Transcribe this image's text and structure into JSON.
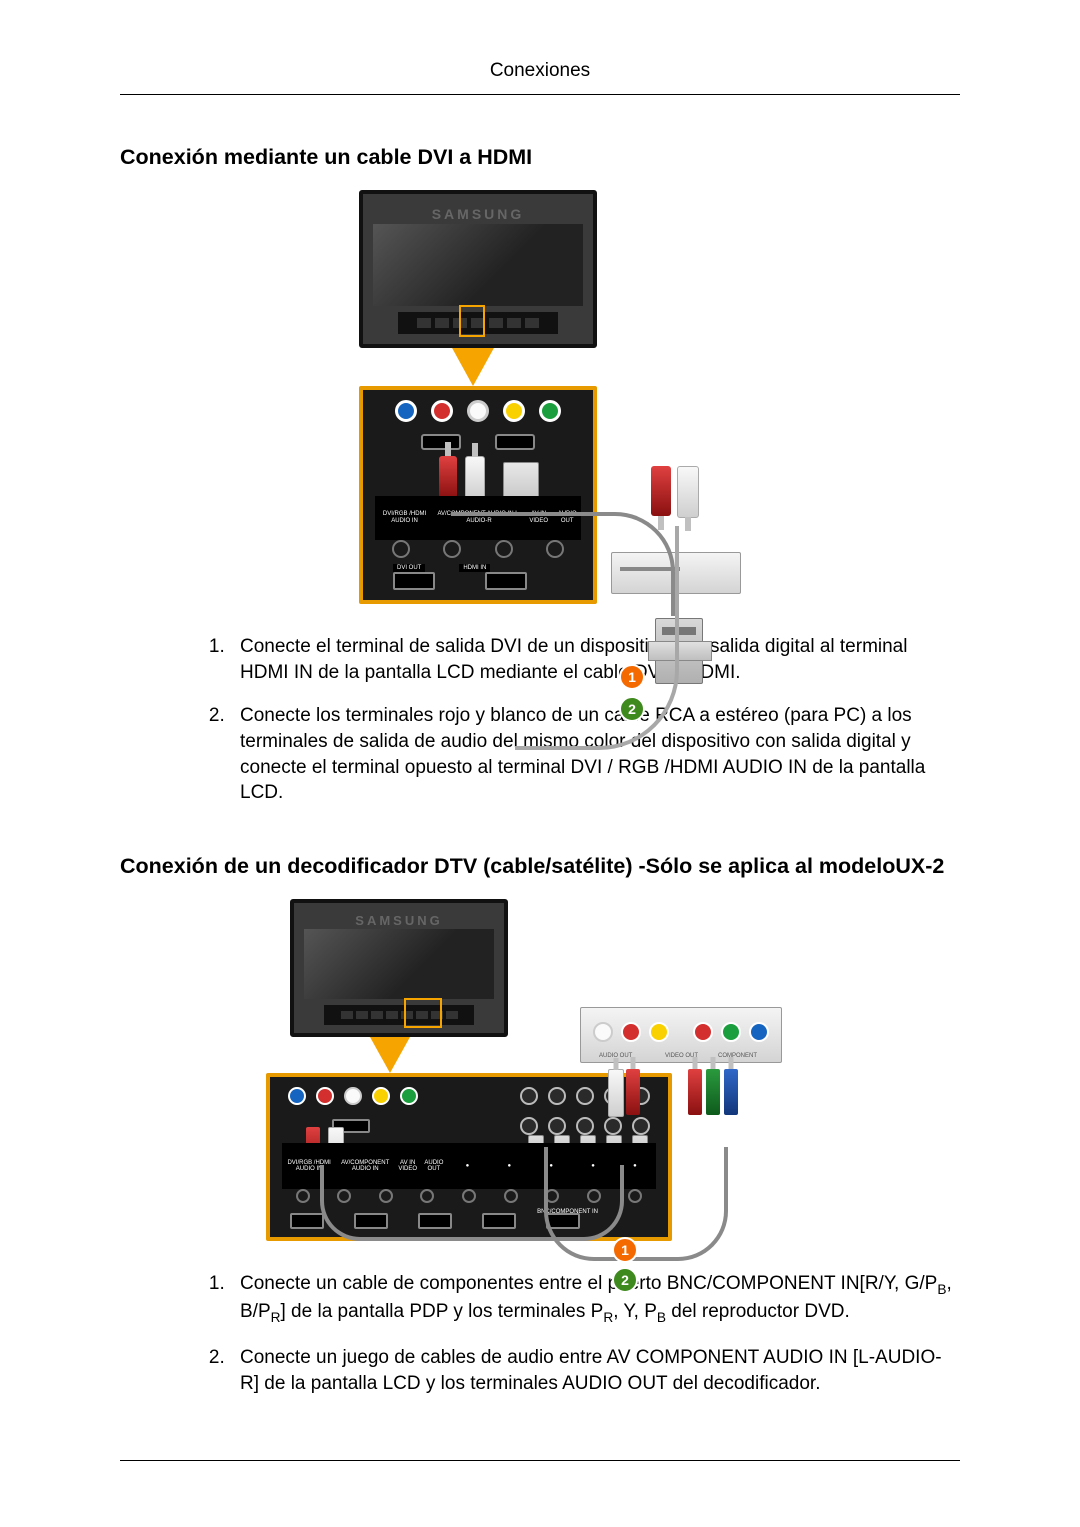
{
  "runningHead": "Conexiones",
  "section1": {
    "title": "Conexión mediante un cable DVI a HDMI",
    "figure": {
      "brand": "SAMSUNG",
      "panel": {
        "topJacks": [
          "#1565c0",
          "#d32f2f",
          "#fafafa",
          "#f9d000",
          "#1b9e3e"
        ],
        "labels": [
          "DVI/RGB\n/HDMI\nAUDIO IN",
          "AV/COMPONENT\nAUDIO IN\nL-AUDIO-R",
          "AV IN\nVIDEO",
          "AUDIO\nOUT"
        ],
        "bottomPortLabels": [
          "DVI OUT",
          "HDMI IN"
        ]
      },
      "badges": {
        "orange": "1",
        "green": "2"
      },
      "colors": {
        "highlight": "#f5a400",
        "panelBorder": "#e79a00",
        "badgeOrange": "#f56a00",
        "badgeGreen": "#3f8a1e"
      }
    },
    "steps": [
      "Conecte el terminal de salida DVI de un dispositivo con salida digital al terminal HDMI IN de la pantalla LCD mediante el cable DVI a HDMI.",
      "Conecte los terminales rojo y blanco de un cable RCA a estéreo (para PC) a los terminales de salida de audio del mismo color del dispositivo con salida digital y conecte el terminal opuesto al terminal DVI / RGB /HDMI AUDIO IN de la pantalla LCD."
    ]
  },
  "section2": {
    "title": "Conexión de un decodificador DTV (cable/satélite) -Sólo se aplica al modeloUX-2",
    "figure": {
      "brand": "SAMSUNG",
      "panel": {
        "leftJacks": [
          "#1565c0",
          "#d32f2f",
          "#fafafa",
          "#f9d000",
          "#1b9e3e"
        ],
        "labelsLeft": [
          "DVI/RGB\n/HDMI\nAUDIO IN",
          "AV/COMPONENT\nAUDIO IN",
          "AV IN\nVIDEO",
          "AUDIO\nOUT"
        ],
        "bottomPortLabels": [
          "DVI OUT",
          "HDMI IN"
        ],
        "bncLabel": "BNC/COMPONENT IN"
      },
      "stb": {
        "audioOut": [
          "#fafafa",
          "#d32f2f"
        ],
        "videoOut": [
          "#f9d000"
        ],
        "component": [
          "#d32f2f",
          "#1b9e3e",
          "#1565c0"
        ],
        "labels": [
          "AUDIO OUT",
          "VIDEO OUT",
          "COMPONENT"
        ]
      },
      "badges": {
        "orange": "1",
        "green": "2"
      }
    },
    "step1": {
      "pre": "Conecte un cable de componentes entre el puerto BNC/COMPONENT IN[R/Y, G/P",
      "sub1": "B",
      "mid1": ", B/P",
      "sub2": "R",
      "mid2": "] de la pantalla PDP y los terminales P",
      "sub3": "R",
      "mid3": ", Y, P",
      "sub4": "B",
      "post": " del reproductor DVD."
    },
    "step2": "Conecte un juego de cables de audio entre AV COMPONENT AUDIO IN [L-AUDIO-R] de la pantalla LCD y los terminales AUDIO OUT del decodificador."
  }
}
